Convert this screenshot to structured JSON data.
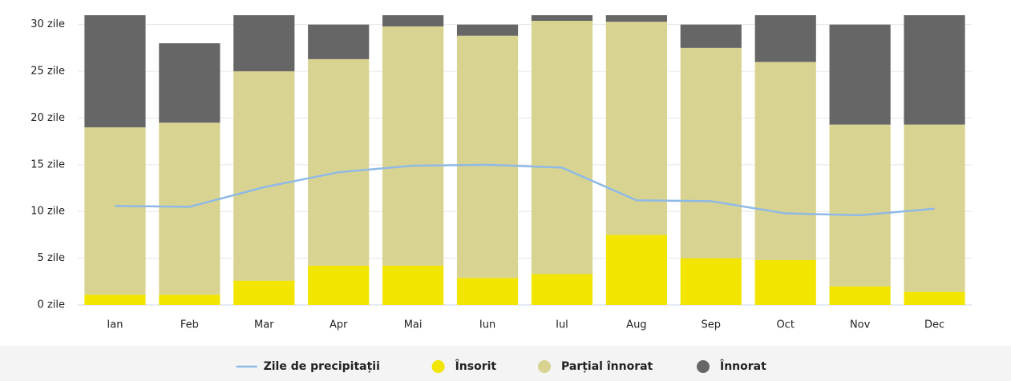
{
  "chart_data": {
    "type": "bar",
    "stacked": true,
    "categories": [
      "Ian",
      "Feb",
      "Mar",
      "Apr",
      "Mai",
      "Iun",
      "Iul",
      "Aug",
      "Sep",
      "Oct",
      "Nov",
      "Dec"
    ],
    "series": [
      {
        "name": "Zile de precipitații",
        "type": "line",
        "color": "#8fb9e6",
        "values": [
          10.6,
          10.5,
          12.6,
          14.2,
          14.9,
          15.0,
          14.7,
          11.2,
          11.1,
          9.8,
          9.6,
          10.3
        ]
      },
      {
        "name": "Însorit",
        "color": "#f2e600",
        "values": [
          1.1,
          1.1,
          2.6,
          4.2,
          4.2,
          2.9,
          3.3,
          7.5,
          5.0,
          4.8,
          2.0,
          1.4
        ]
      },
      {
        "name": "Parțial înnorat",
        "color": "#d8d390",
        "values": [
          17.9,
          18.4,
          22.4,
          22.1,
          25.6,
          25.9,
          27.1,
          22.8,
          22.5,
          21.2,
          17.3,
          17.9
        ]
      },
      {
        "name": "Înnorat",
        "color": "#666666",
        "values": [
          12.0,
          8.5,
          6.0,
          3.7,
          1.2,
          1.2,
          0.6,
          0.7,
          2.5,
          5.0,
          10.7,
          11.7
        ]
      }
    ],
    "ylim": [
      0,
      31
    ],
    "yticks": [
      {
        "value": 0,
        "label": "0 zile"
      },
      {
        "value": 5,
        "label": "5 zile"
      },
      {
        "value": 10,
        "label": "10 zile"
      },
      {
        "value": 15,
        "label": "15 zile"
      },
      {
        "value": 20,
        "label": "20 zile"
      },
      {
        "value": 25,
        "label": "25 zile"
      },
      {
        "value": 30,
        "label": "30 zile"
      }
    ],
    "grid": true,
    "legend": "bottom"
  }
}
